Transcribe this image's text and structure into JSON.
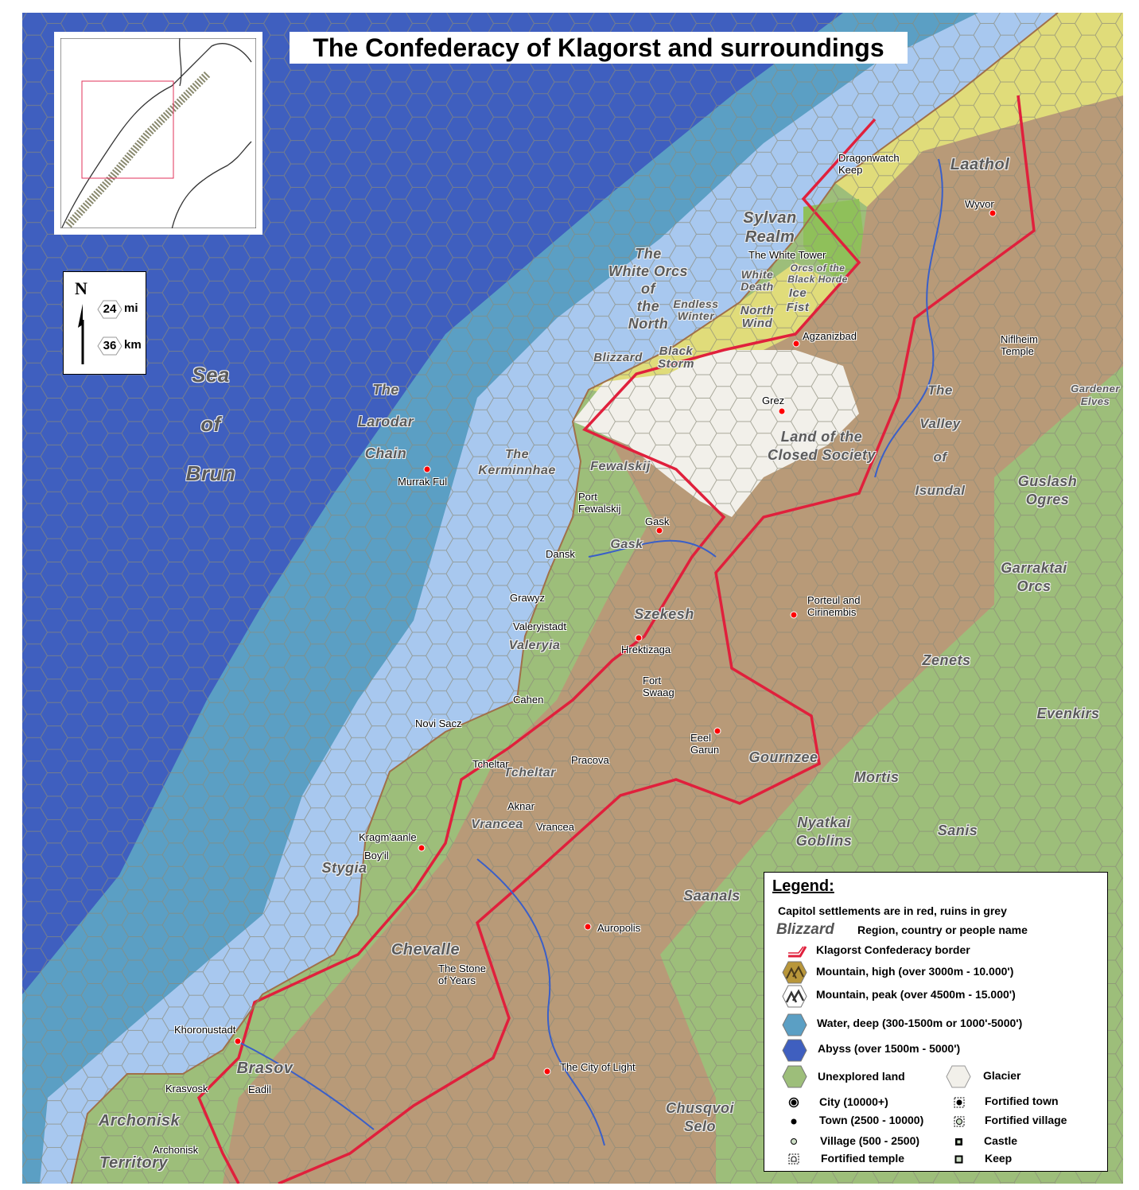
{
  "title": "The Confederacy of Klagorst and surroundings",
  "scale": {
    "north": "N",
    "mi_value": "24",
    "mi_unit": "mi",
    "km_value": "36",
    "km_unit": "km"
  },
  "colors": {
    "abyss": "#3f5fbf",
    "deep_water": "#5b9fc4",
    "shallow_water": "#a8c8ef",
    "unexplored_land": "#9dbe7a",
    "mountain": "#b89a78",
    "hills_yellow": "#e0dc7a",
    "glacier": "#f2f0ea",
    "forest": "#8fc05a",
    "border": "#e0203c",
    "river": "#3a5fc8",
    "capital": "#ff0000"
  },
  "regions": [
    "Sea\nof\nBrun",
    "The\nLarodar\nChain",
    "The\nKerminnhae",
    "The\nWhite Orcs\nof\nthe\nNorth",
    "Endless\nWinter",
    "Sylvan\nRealm",
    "White\nDeath",
    "Orcs of the\nBlack Horde",
    "Ice\nFist",
    "North\nWind",
    "Blizzard",
    "Black\nStorm",
    "Laathol",
    "Fewalskij",
    "Gask",
    "Szekesh",
    "Valeryia",
    "Land of the\nClosed Society",
    "The\nValley\nof\nIsundal",
    "Guslash\nOgres",
    "Gardener\nElves",
    "Garraktai\nOrcs",
    "Zenets",
    "Evenkirs",
    "Mortis",
    "Nyatkai\nGoblins",
    "Sanis",
    "Saanals",
    "Gournzee",
    "Tcheltar",
    "Vrancea",
    "Stygia",
    "Chevalle",
    "Brasov",
    "Archonisk",
    "Territory",
    "Chusqvoi\nSelo"
  ],
  "settlements": [
    "Dragonwatch\nKeep",
    "Wyvor",
    "The White Tower",
    "Agzanizbad",
    "Niflheim\nTemple",
    "Grez",
    "Murrak Ful",
    "Port\nFewalskij",
    "Gask",
    "Dansk",
    "Grawyz",
    "Valeryistadt",
    "Hrektizaga",
    "Porteul and\nCirinembis",
    "Fort\nSwaag",
    "Cahen",
    "Novi Sacz",
    "Tcheltar",
    "Pracova",
    "Eeel\nGarun",
    "Aknar",
    "Vrancea",
    "Kragm'aanle",
    "Boy'il",
    "Auropolis",
    "The Stone\nof Years",
    "Khoronustadt",
    "Krasvosk",
    "Eadil",
    "Archonisk",
    "The City of Light"
  ],
  "legend": {
    "title": "Legend:",
    "note": "Capitol settlements are in red, ruins in grey",
    "region_sample": "Blizzard",
    "region_desc": "Region, country or people name",
    "items": [
      {
        "label": "Klagorst Confederacy border",
        "icon": "border-line"
      },
      {
        "label": "Mountain, high (over 3000m - 10.000')",
        "icon": "mountain-hex"
      },
      {
        "label": "Mountain, peak (over 4500m - 15.000')",
        "icon": "peak-hex"
      },
      {
        "label": "Water, deep (300-1500m or 1000'-5000')",
        "icon": "deep-water-hex"
      },
      {
        "label": "Abyss (over 1500m - 5000')",
        "icon": "abyss-hex"
      },
      {
        "label": "Unexplored land",
        "icon": "unexplored-hex"
      },
      {
        "label": "Glacier",
        "icon": "glacier-hex"
      },
      {
        "label": "City (10000+)",
        "icon": "city-dot"
      },
      {
        "label": "Town (2500 - 10000)",
        "icon": "town-dot"
      },
      {
        "label": "Village (500 - 2500)",
        "icon": "village-dot"
      },
      {
        "label": "Fortified temple",
        "icon": "fortified-temple"
      },
      {
        "label": "Fortified town",
        "icon": "fortified-town"
      },
      {
        "label": "Fortified village",
        "icon": "fortified-village"
      },
      {
        "label": "Castle",
        "icon": "castle"
      },
      {
        "label": "Keep",
        "icon": "keep"
      }
    ]
  }
}
